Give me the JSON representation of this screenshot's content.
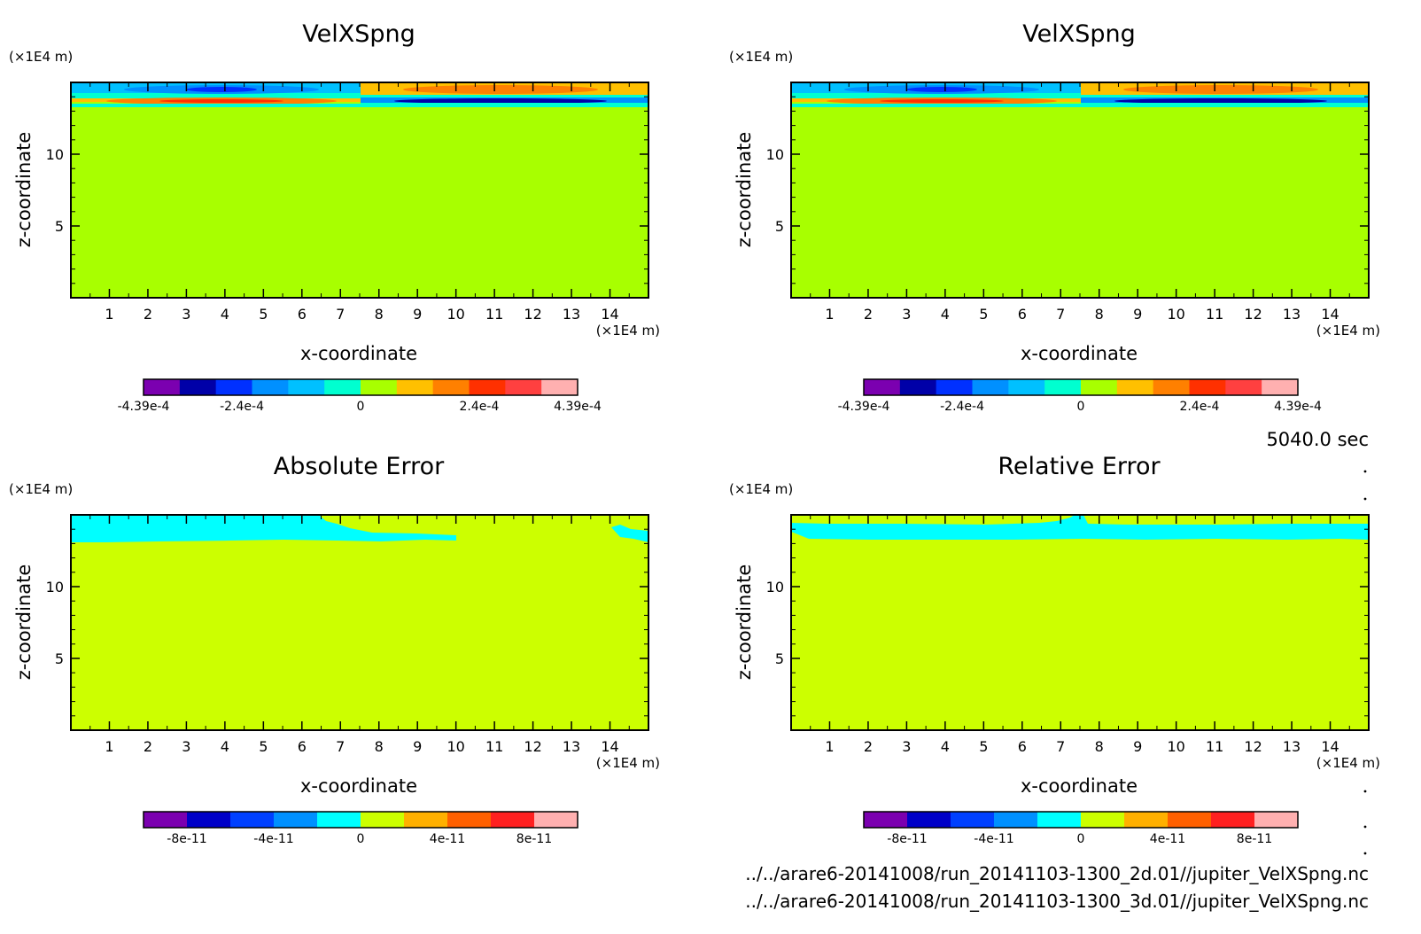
{
  "colors": {
    "bg": "#a8ff00",
    "err_bg": "#ccff00",
    "frame": "#000000"
  },
  "timestamp": "5040.0 sec",
  "footer": [
    "../../arare6-20141008/run_20141103-1300_2d.01//jupiter_VelXSpng.nc",
    "../../arare6-20141008/run_20141103-1300_3d.01//jupiter_VelXSpng.nc"
  ],
  "chart_data": [
    {
      "type": "heatmap",
      "title": "VelXSpng",
      "xlabel": "x-coordinate",
      "ylabel": "z-coordinate",
      "x_unit": "(×1E4 m)",
      "y_unit": "(×1E4 m)",
      "xlim": [
        0,
        15
      ],
      "ylim": [
        0,
        15
      ],
      "xticks": [
        "1",
        "2",
        "3",
        "4",
        "5",
        "6",
        "7",
        "8",
        "9",
        "10",
        "11",
        "12",
        "13",
        "14"
      ],
      "yticks": [
        "5",
        "10"
      ],
      "colorbar": {
        "colors": [
          "#7b00b0",
          "#0000a8",
          "#0030ff",
          "#0090ff",
          "#00c0ff",
          "#00ffd0",
          "#a8ff00",
          "#ffc000",
          "#ff8000",
          "#ff3000",
          "#ff4040",
          "#ffb0b0"
        ],
        "labels": [
          "-4.39e-4",
          "-2.4e-4",
          "0",
          "2.4e-4",
          "4.39e-4"
        ],
        "label_values": [
          -0.000439,
          -0.00024,
          0,
          0.00024,
          0.000439
        ],
        "range": [
          -0.000439,
          0.000439
        ]
      }
    },
    {
      "type": "heatmap",
      "title": "VelXSpng",
      "xlabel": "x-coordinate",
      "ylabel": "z-coordinate",
      "x_unit": "(×1E4 m)",
      "y_unit": "(×1E4 m)",
      "xlim": [
        0,
        15
      ],
      "ylim": [
        0,
        15
      ],
      "xticks": [
        "1",
        "2",
        "3",
        "4",
        "5",
        "6",
        "7",
        "8",
        "9",
        "10",
        "11",
        "12",
        "13",
        "14"
      ],
      "yticks": [
        "5",
        "10"
      ],
      "colorbar": {
        "colors": [
          "#7b00b0",
          "#0000a8",
          "#0030ff",
          "#0090ff",
          "#00c0ff",
          "#00ffd0",
          "#a8ff00",
          "#ffc000",
          "#ff8000",
          "#ff3000",
          "#ff4040",
          "#ffb0b0"
        ],
        "labels": [
          "-4.39e-4",
          "-2.4e-4",
          "0",
          "2.4e-4",
          "4.39e-4"
        ],
        "label_values": [
          -0.000439,
          -0.00024,
          0,
          0.00024,
          0.000439
        ],
        "range": [
          -0.000439,
          0.000439
        ]
      }
    },
    {
      "type": "heatmap",
      "title": "Absolute Error",
      "xlabel": "x-coordinate",
      "ylabel": "z-coordinate",
      "x_unit": "(×1E4 m)",
      "y_unit": "(×1E4 m)",
      "xlim": [
        0,
        15
      ],
      "ylim": [
        0,
        15
      ],
      "xticks": [
        "1",
        "2",
        "3",
        "4",
        "5",
        "6",
        "7",
        "8",
        "9",
        "10",
        "11",
        "12",
        "13",
        "14"
      ],
      "yticks": [
        "5",
        "10"
      ],
      "colorbar": {
        "colors": [
          "#7b00b0",
          "#0000c8",
          "#0040ff",
          "#0090ff",
          "#00ffff",
          "#ccff00",
          "#ffb000",
          "#ff6000",
          "#ff2020",
          "#ffb0b0"
        ],
        "labels": [
          "-8e-11",
          "-4e-11",
          "0",
          "4e-11",
          "8e-11"
        ],
        "label_values": [
          -8e-11,
          -4e-11,
          0,
          4e-11,
          8e-11
        ],
        "range": [
          -1e-10,
          1e-10
        ]
      }
    },
    {
      "type": "heatmap",
      "title": "Relative Error",
      "xlabel": "x-coordinate",
      "ylabel": "z-coordinate",
      "x_unit": "(×1E4 m)",
      "y_unit": "(×1E4 m)",
      "xlim": [
        0,
        15
      ],
      "ylim": [
        0,
        15
      ],
      "xticks": [
        "1",
        "2",
        "3",
        "4",
        "5",
        "6",
        "7",
        "8",
        "9",
        "10",
        "11",
        "12",
        "13",
        "14"
      ],
      "yticks": [
        "5",
        "10"
      ],
      "colorbar": {
        "colors": [
          "#7b00b0",
          "#0000c8",
          "#0040ff",
          "#0090ff",
          "#00ffff",
          "#ccff00",
          "#ffb000",
          "#ff6000",
          "#ff2020",
          "#ffb0b0"
        ],
        "labels": [
          "-8e-11",
          "-4e-11",
          "0",
          "4e-11",
          "8e-11"
        ],
        "label_values": [
          -8e-11,
          -4e-11,
          0,
          4e-11,
          8e-11
        ],
        "range": [
          -1e-10,
          1e-10
        ]
      }
    }
  ]
}
